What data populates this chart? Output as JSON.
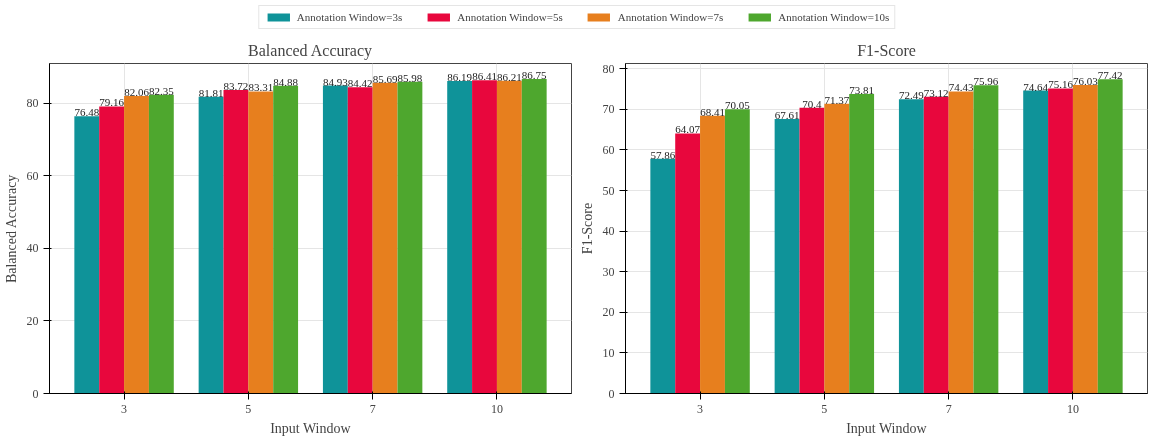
{
  "chart_data": [
    {
      "type": "bar",
      "title": "Balanced Accuracy",
      "xlabel": "Input Window",
      "ylabel": "Balanced Accuracy",
      "categories": [
        "3",
        "5",
        "7",
        "10"
      ],
      "series": [
        {
          "name": "Annotation Window=3s",
          "color": "#0f9399",
          "values": [
            76.48,
            81.81,
            84.93,
            86.19
          ]
        },
        {
          "name": "Annotation Window=5s",
          "color": "#e8073d",
          "values": [
            79.16,
            83.72,
            84.42,
            86.41
          ]
        },
        {
          "name": "Annotation Window=7s",
          "color": "#e77f1e",
          "values": [
            82.06,
            83.31,
            85.69,
            86.21
          ]
        },
        {
          "name": "Annotation Window=10s",
          "color": "#4ea72e",
          "values": [
            82.35,
            84.88,
            85.98,
            86.75
          ]
        }
      ],
      "ylim": [
        0,
        91
      ],
      "yticks": [
        0,
        20,
        40,
        60,
        80
      ],
      "grid": true,
      "legend": "top",
      "data_labels": true
    },
    {
      "type": "bar",
      "title": "F1-Score",
      "xlabel": "Input Window",
      "ylabel": "F1-Score",
      "categories": [
        "3",
        "5",
        "7",
        "10"
      ],
      "series": [
        {
          "color": "#0f9399",
          "values": [
            57.86,
            67.61,
            72.49,
            74.64
          ]
        },
        {
          "color": "#e8073d",
          "values": [
            64.07,
            70.4,
            73.12,
            75.16
          ]
        },
        {
          "color": "#e77f1e",
          "values": [
            68.41,
            71.37,
            74.43,
            76.03
          ]
        },
        {
          "color": "#4ea72e",
          "values": [
            70.05,
            73.81,
            75.96,
            77.42
          ]
        }
      ],
      "ylim": [
        0,
        81.3
      ],
      "yticks": [
        0,
        10,
        20,
        30,
        40,
        50,
        60,
        70,
        80
      ],
      "grid": true,
      "data_labels": true
    }
  ]
}
